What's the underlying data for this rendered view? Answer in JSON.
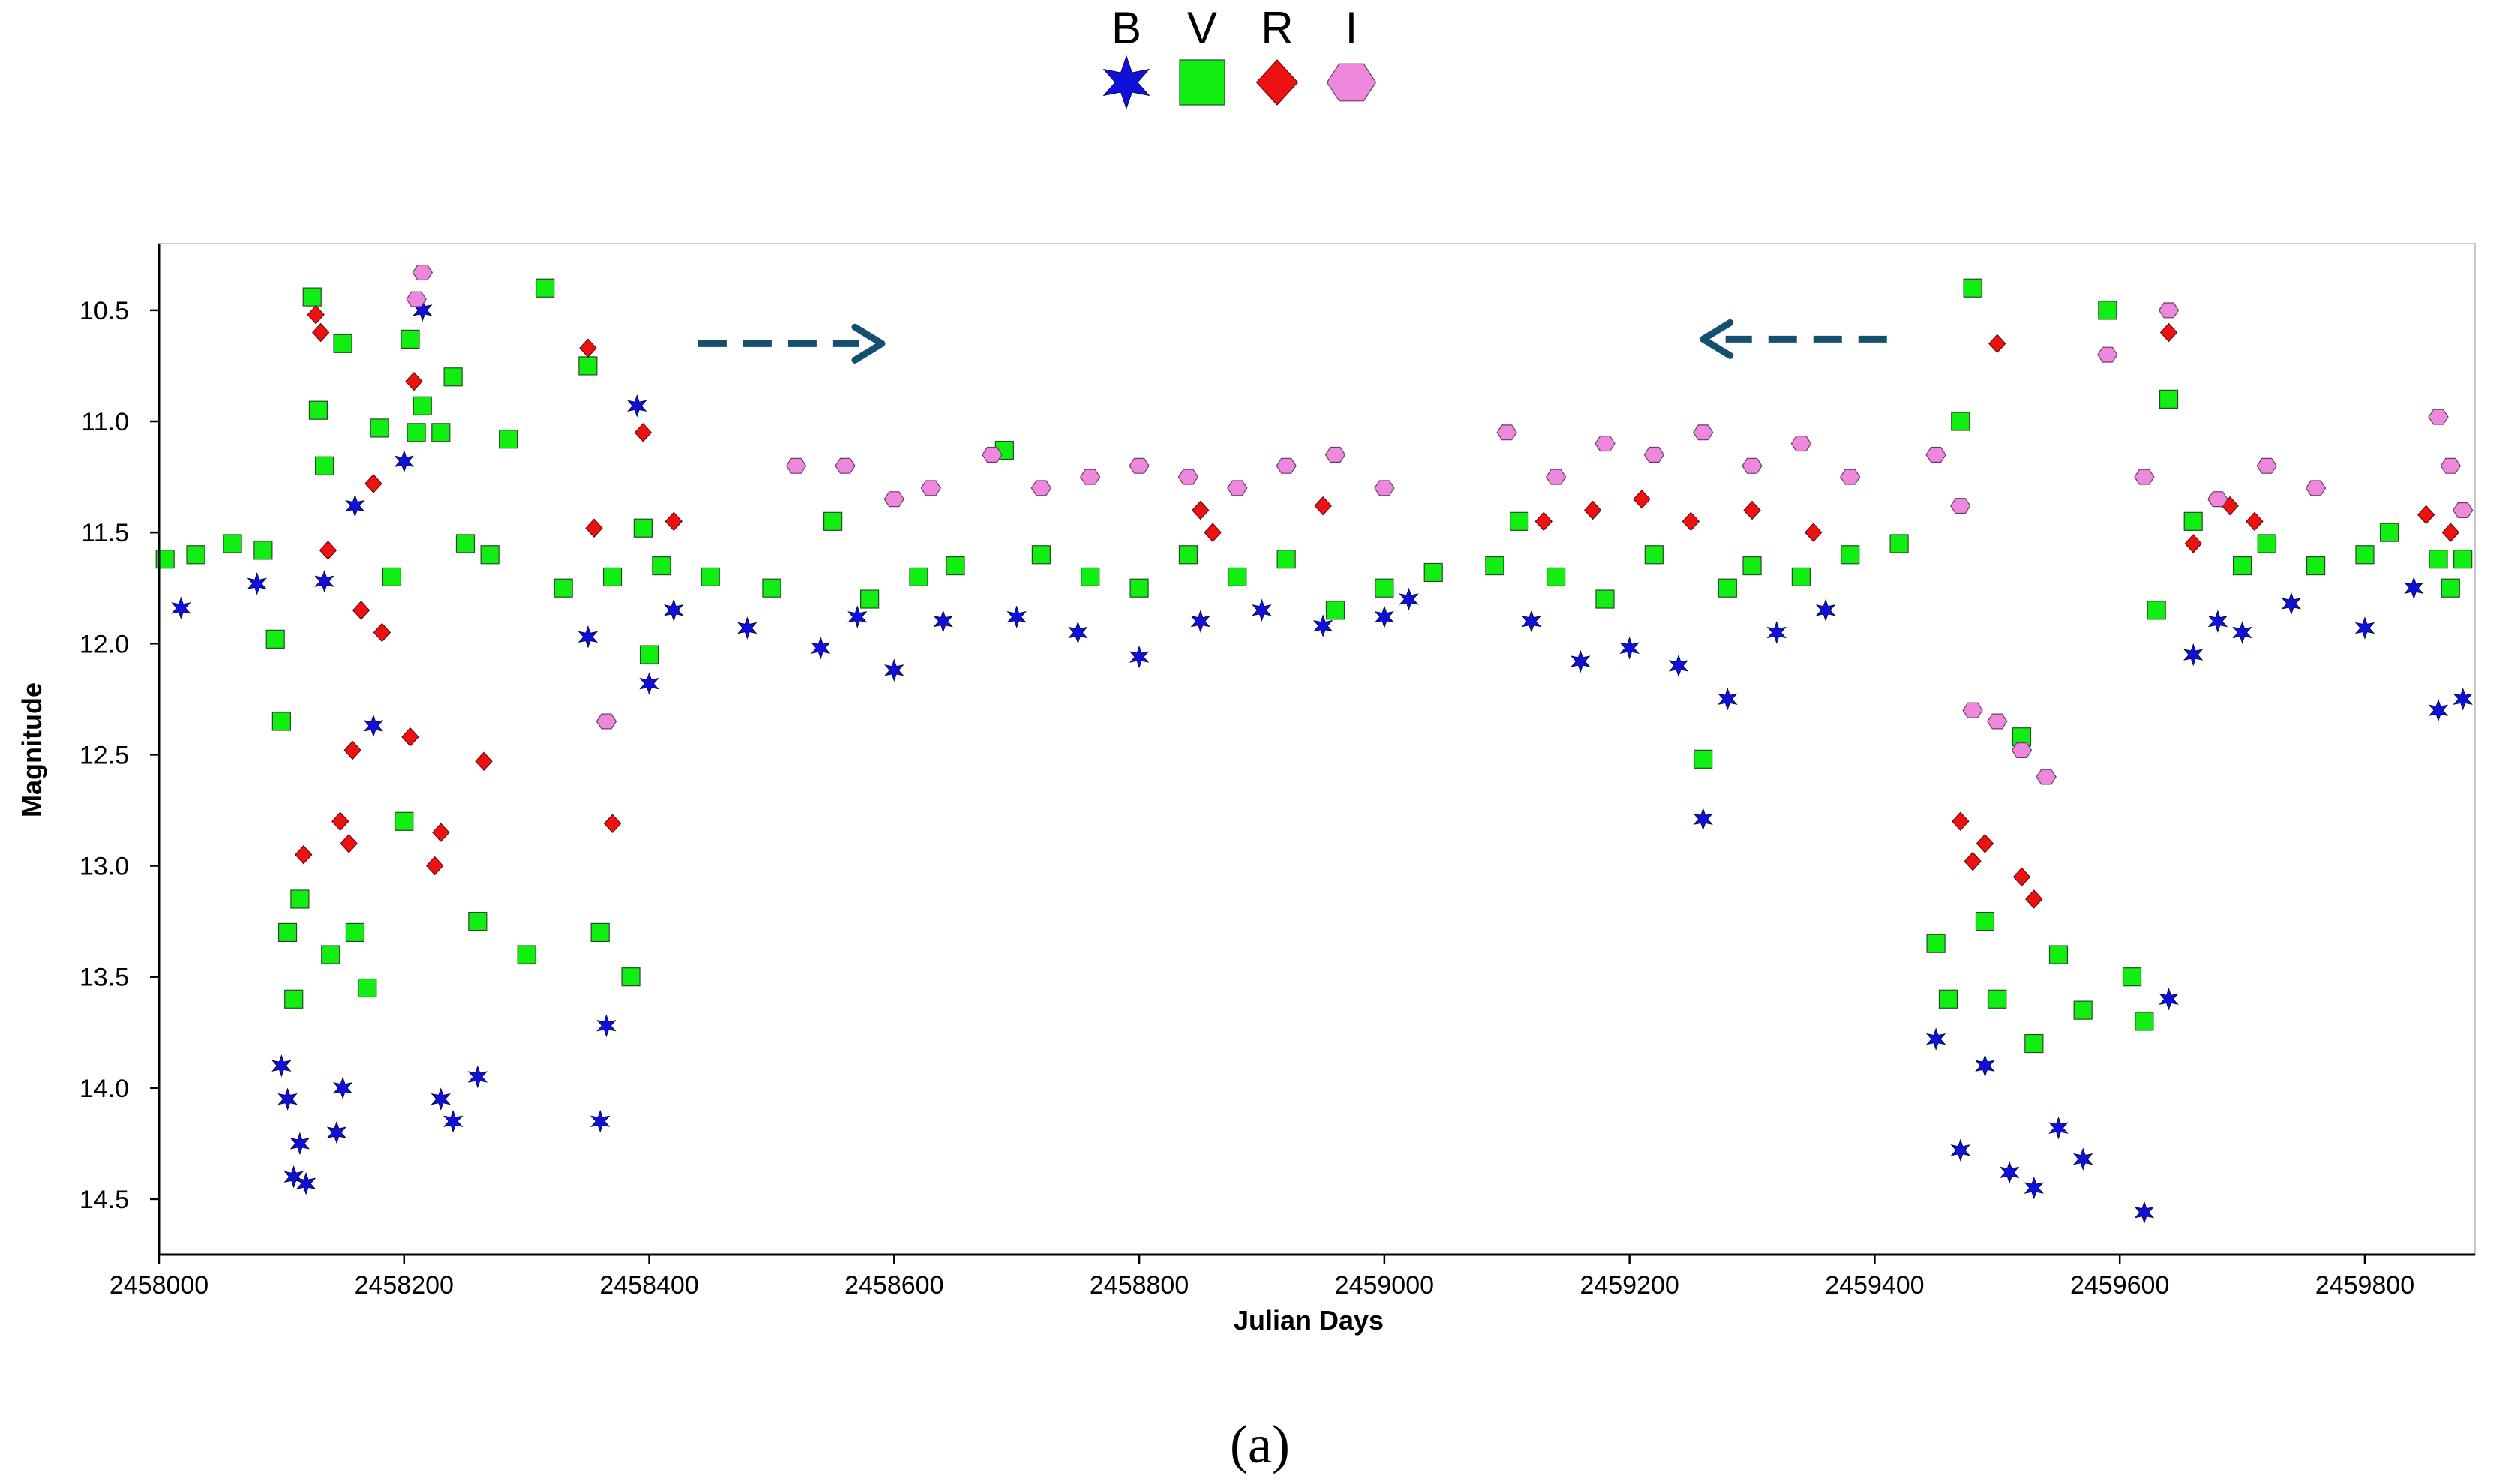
{
  "chart_data": {
    "type": "scatter",
    "title": "",
    "xlabel": "Julian Days",
    "ylabel": "Magnitude",
    "caption": "(a)",
    "xlim": [
      2458000,
      2459890
    ],
    "ylim": [
      10.2,
      14.75
    ],
    "y_inverted": true,
    "xticks": [
      2458000,
      2458200,
      2458400,
      2458600,
      2458800,
      2459000,
      2459200,
      2459400,
      2459600,
      2459800
    ],
    "xtick_labels": [
      "2458000",
      "2458200",
      "2458400",
      "2458600",
      "2458800",
      "2459000",
      "2459200",
      "2459400",
      "2459600",
      "2459800"
    ],
    "yticks": [
      10.5,
      11.0,
      11.5,
      12.0,
      12.5,
      13.0,
      13.5,
      14.0,
      14.5
    ],
    "ytick_labels": [
      "10.5",
      "11.0",
      "11.5",
      "12.0",
      "12.5",
      "13.0",
      "13.5",
      "14.0",
      "14.5"
    ],
    "legend_position": "top-center",
    "grid": false,
    "series": [
      {
        "name": "B",
        "marker": "star",
        "color": "#1010d8",
        "x": [
          2458018,
          2458080,
          2458100,
          2458105,
          2458110,
          2458115,
          2458120,
          2458135,
          2458145,
          2458150,
          2458160,
          2458175,
          2458200,
          2458215,
          2458230,
          2458240,
          2458260,
          2458350,
          2458360,
          2458365,
          2458390,
          2458400,
          2458420,
          2458480,
          2458540,
          2458570,
          2458600,
          2458640,
          2458700,
          2458750,
          2458800,
          2458850,
          2458900,
          2458950,
          2459000,
          2459020,
          2459120,
          2459160,
          2459200,
          2459240,
          2459260,
          2459280,
          2459320,
          2459360,
          2459450,
          2459470,
          2459490,
          2459510,
          2459530,
          2459550,
          2459570,
          2459620,
          2459640,
          2459660,
          2459680,
          2459700,
          2459740,
          2459800,
          2459840,
          2459860,
          2459880
        ],
        "y": [
          11.84,
          11.73,
          13.9,
          14.05,
          14.4,
          14.25,
          14.43,
          11.72,
          14.2,
          14.0,
          11.38,
          12.37,
          11.18,
          10.5,
          14.05,
          14.15,
          13.95,
          11.97,
          14.15,
          13.72,
          10.93,
          12.18,
          11.85,
          11.93,
          12.02,
          11.88,
          12.12,
          11.9,
          11.88,
          11.95,
          12.06,
          11.9,
          11.85,
          11.92,
          11.88,
          11.8,
          11.9,
          12.08,
          12.02,
          12.1,
          12.79,
          12.25,
          11.95,
          11.85,
          13.78,
          14.28,
          13.9,
          14.38,
          14.45,
          14.18,
          14.32,
          14.56,
          13.6,
          12.05,
          11.9,
          11.95,
          11.82,
          11.93,
          11.75,
          12.3,
          12.25
        ]
      },
      {
        "name": "V",
        "marker": "square",
        "color": "#11ee11",
        "x": [
          2458005,
          2458030,
          2458060,
          2458085,
          2458095,
          2458100,
          2458105,
          2458110,
          2458115,
          2458125,
          2458130,
          2458135,
          2458140,
          2458150,
          2458160,
          2458170,
          2458180,
          2458190,
          2458200,
          2458205,
          2458210,
          2458215,
          2458230,
          2458240,
          2458250,
          2458260,
          2458270,
          2458285,
          2458300,
          2458315,
          2458330,
          2458350,
          2458360,
          2458370,
          2458385,
          2458395,
          2458400,
          2458410,
          2458450,
          2458500,
          2458550,
          2458580,
          2458620,
          2458650,
          2458690,
          2458720,
          2458760,
          2458800,
          2458840,
          2458880,
          2458920,
          2458960,
          2459000,
          2459040,
          2459090,
          2459110,
          2459140,
          2459180,
          2459220,
          2459260,
          2459280,
          2459300,
          2459340,
          2459380,
          2459420,
          2459450,
          2459460,
          2459470,
          2459480,
          2459490,
          2459500,
          2459520,
          2459530,
          2459550,
          2459570,
          2459590,
          2459610,
          2459620,
          2459630,
          2459640,
          2459660,
          2459700,
          2459720,
          2459760,
          2459800,
          2459820,
          2459860,
          2459870,
          2459880
        ],
        "y": [
          11.62,
          11.6,
          11.55,
          11.58,
          11.98,
          12.35,
          13.3,
          13.6,
          13.15,
          10.44,
          10.95,
          11.2,
          13.4,
          10.65,
          13.3,
          13.55,
          11.03,
          11.7,
          12.8,
          10.63,
          11.05,
          10.93,
          11.05,
          10.8,
          11.55,
          13.25,
          11.6,
          11.08,
          13.4,
          10.4,
          11.75,
          10.75,
          13.3,
          11.7,
          13.5,
          11.48,
          12.05,
          11.65,
          11.7,
          11.75,
          11.45,
          11.8,
          11.7,
          11.65,
          11.13,
          11.6,
          11.7,
          11.75,
          11.6,
          11.7,
          11.62,
          11.85,
          11.75,
          11.68,
          11.65,
          11.45,
          11.7,
          11.8,
          11.6,
          12.52,
          11.75,
          11.65,
          11.7,
          11.6,
          11.55,
          13.35,
          13.6,
          11.0,
          10.4,
          13.25,
          13.6,
          12.42,
          13.8,
          13.4,
          13.65,
          10.5,
          13.5,
          13.7,
          11.85,
          10.9,
          11.45,
          11.65,
          11.55,
          11.65,
          11.6,
          11.5,
          11.62,
          11.75,
          11.62
        ]
      },
      {
        "name": "R",
        "marker": "diamond",
        "color": "#ee1111",
        "x": [
          2458118,
          2458128,
          2458132,
          2458138,
          2458148,
          2458155,
          2458158,
          2458165,
          2458175,
          2458182,
          2458205,
          2458208,
          2458225,
          2458230,
          2458265,
          2458350,
          2458355,
          2458370,
          2458395,
          2458420,
          2458850,
          2458860,
          2458950,
          2459130,
          2459170,
          2459210,
          2459250,
          2459300,
          2459350,
          2459470,
          2459480,
          2459490,
          2459500,
          2459520,
          2459530,
          2459640,
          2459660,
          2459690,
          2459710,
          2459850,
          2459870
        ],
        "y": [
          12.95,
          10.52,
          10.6,
          11.58,
          12.8,
          12.9,
          12.48,
          11.85,
          11.28,
          11.95,
          12.42,
          10.82,
          13.0,
          12.85,
          12.53,
          10.67,
          11.48,
          12.81,
          11.05,
          11.45,
          11.4,
          11.5,
          11.38,
          11.45,
          11.4,
          11.35,
          11.45,
          11.4,
          11.5,
          12.8,
          12.98,
          12.9,
          10.65,
          13.05,
          13.15,
          10.6,
          11.55,
          11.38,
          11.45,
          11.42,
          11.5
        ]
      },
      {
        "name": "I",
        "marker": "hexagon",
        "color": "#ee88dd",
        "x": [
          2458210,
          2458215,
          2458365,
          2458520,
          2458560,
          2458600,
          2458630,
          2458680,
          2458720,
          2458760,
          2458800,
          2458840,
          2458880,
          2458920,
          2458960,
          2459000,
          2459100,
          2459140,
          2459180,
          2459220,
          2459260,
          2459300,
          2459340,
          2459380,
          2459450,
          2459470,
          2459480,
          2459500,
          2459520,
          2459540,
          2459590,
          2459620,
          2459640,
          2459680,
          2459720,
          2459760,
          2459860,
          2459870,
          2459880
        ],
        "y": [
          10.45,
          10.33,
          12.35,
          11.2,
          11.2,
          11.35,
          11.3,
          11.15,
          11.3,
          11.25,
          11.2,
          11.25,
          11.3,
          11.2,
          11.15,
          11.3,
          11.05,
          11.25,
          11.1,
          11.15,
          11.05,
          11.2,
          11.1,
          11.25,
          11.15,
          11.38,
          12.3,
          12.35,
          12.48,
          12.6,
          10.7,
          11.25,
          10.5,
          11.35,
          11.2,
          11.3,
          10.98,
          11.2,
          11.4
        ]
      }
    ],
    "annotations": [
      {
        "type": "dashed-arrow",
        "direction": "right",
        "x_from": 2458440,
        "x_to": 2458590,
        "y": 10.65
      },
      {
        "type": "dashed-arrow",
        "direction": "left",
        "x_from": 2459410,
        "x_to": 2459260,
        "y": 10.63
      }
    ]
  }
}
